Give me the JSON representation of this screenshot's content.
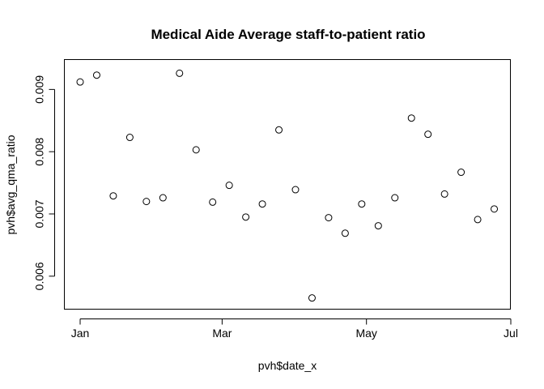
{
  "chart_data": {
    "type": "scatter",
    "title": "Medical Aide Average staff-to-patient ratio",
    "xlabel": "pvh$date_x",
    "ylabel": "pvh$avg_qma_ratio",
    "x_is_date": true,
    "xlim": [
      "2020-01-01",
      "2020-07-01"
    ],
    "ylim": [
      0.00547,
      0.00948
    ],
    "x_ticks": [
      {
        "date": "2020-01-01",
        "label": "Jan"
      },
      {
        "date": "2020-03-01",
        "label": "Mar"
      },
      {
        "date": "2020-05-01",
        "label": "May"
      },
      {
        "date": "2020-07-01",
        "label": "Jul"
      }
    ],
    "y_ticks": [
      {
        "value": 0.006,
        "label": "0.006"
      },
      {
        "value": 0.007,
        "label": "0.007"
      },
      {
        "value": 0.008,
        "label": "0.008"
      },
      {
        "value": 0.009,
        "label": "0.009"
      }
    ],
    "grid": false,
    "legend": "none",
    "marker": "open-circle",
    "points": [
      {
        "x": "2020-01-01",
        "y": 0.00912
      },
      {
        "x": "2020-01-08",
        "y": 0.00923
      },
      {
        "x": "2020-01-15",
        "y": 0.00729
      },
      {
        "x": "2020-01-22",
        "y": 0.00823
      },
      {
        "x": "2020-01-29",
        "y": 0.0072
      },
      {
        "x": "2020-02-05",
        "y": 0.00726
      },
      {
        "x": "2020-02-12",
        "y": 0.00926
      },
      {
        "x": "2020-02-19",
        "y": 0.00803
      },
      {
        "x": "2020-02-26",
        "y": 0.00719
      },
      {
        "x": "2020-03-04",
        "y": 0.00746
      },
      {
        "x": "2020-03-11",
        "y": 0.00695
      },
      {
        "x": "2020-03-18",
        "y": 0.00716
      },
      {
        "x": "2020-03-25",
        "y": 0.00835
      },
      {
        "x": "2020-04-01",
        "y": 0.00739
      },
      {
        "x": "2020-04-08",
        "y": 0.00565
      },
      {
        "x": "2020-04-15",
        "y": 0.00694
      },
      {
        "x": "2020-04-22",
        "y": 0.00669
      },
      {
        "x": "2020-04-29",
        "y": 0.00716
      },
      {
        "x": "2020-05-06",
        "y": 0.00681
      },
      {
        "x": "2020-05-13",
        "y": 0.00726
      },
      {
        "x": "2020-05-20",
        "y": 0.00854
      },
      {
        "x": "2020-05-27",
        "y": 0.00828
      },
      {
        "x": "2020-06-03",
        "y": 0.00732
      },
      {
        "x": "2020-06-10",
        "y": 0.00767
      },
      {
        "x": "2020-06-17",
        "y": 0.00691
      },
      {
        "x": "2020-06-24",
        "y": 0.00708
      }
    ]
  }
}
